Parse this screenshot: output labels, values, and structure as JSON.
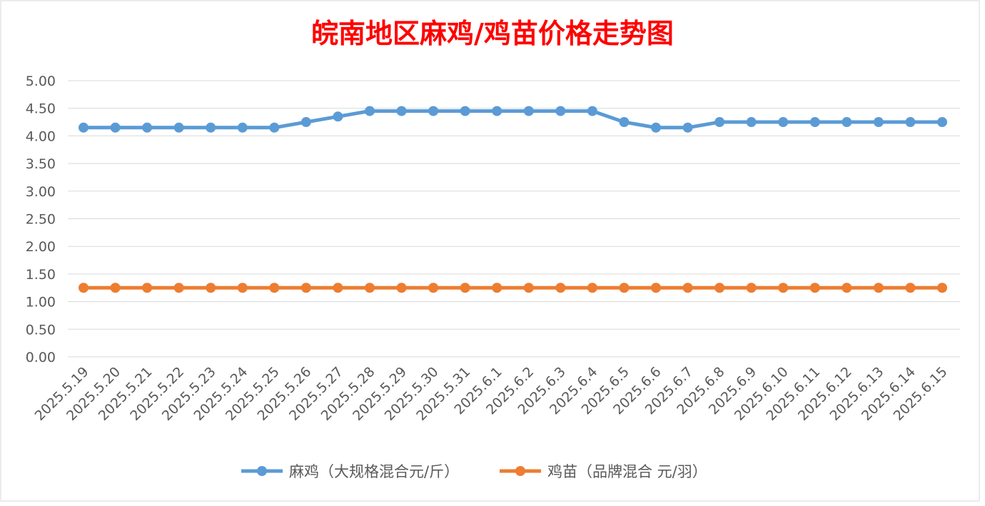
{
  "chart_data": {
    "type": "line",
    "title": "皖南地区麻鸡/鸡苗价格走势图",
    "xlabel": "",
    "ylabel": "",
    "ylim": [
      0,
      5
    ],
    "yticks": [
      "0.00",
      "0.50",
      "1.00",
      "1.50",
      "2.00",
      "2.50",
      "3.00",
      "3.50",
      "4.00",
      "4.50",
      "5.00"
    ],
    "grid": true,
    "legend_position": "bottom",
    "categories": [
      "2025.5.19",
      "2025.5.20",
      "2025.5.21",
      "2025.5.22",
      "2025.5.23",
      "2025.5.24",
      "2025.5.25",
      "2025.5.26",
      "2025.5.27",
      "2025.5.28",
      "2025.5.29",
      "2025.5.30",
      "2025.5.31",
      "2025.6.1",
      "2025.6.2",
      "2025.6.3",
      "2025.6.4",
      "2025.6.5",
      "2025.6.6",
      "2025.6.7",
      "2025.6.8",
      "2025.6.9",
      "2025.6.10",
      "2025.6.11",
      "2025.6.12",
      "2025.6.13",
      "2025.6.14",
      "2025.6.15"
    ],
    "series": [
      {
        "name": "麻鸡（大规格混合元/斤）",
        "color": "#5B9BD5",
        "values": [
          4.15,
          4.15,
          4.15,
          4.15,
          4.15,
          4.15,
          4.15,
          4.25,
          4.35,
          4.45,
          4.45,
          4.45,
          4.45,
          4.45,
          4.45,
          4.45,
          4.45,
          4.25,
          4.15,
          4.15,
          4.25,
          4.25,
          4.25,
          4.25,
          4.25,
          4.25,
          4.25,
          4.25
        ]
      },
      {
        "name": "鸡苗（品牌混合 元/羽）",
        "color": "#ED7D31",
        "values": [
          1.25,
          1.25,
          1.25,
          1.25,
          1.25,
          1.25,
          1.25,
          1.25,
          1.25,
          1.25,
          1.25,
          1.25,
          1.25,
          1.25,
          1.25,
          1.25,
          1.25,
          1.25,
          1.25,
          1.25,
          1.25,
          1.25,
          1.25,
          1.25,
          1.25,
          1.25,
          1.25,
          1.25
        ]
      }
    ],
    "title_color": "#FF0000"
  }
}
